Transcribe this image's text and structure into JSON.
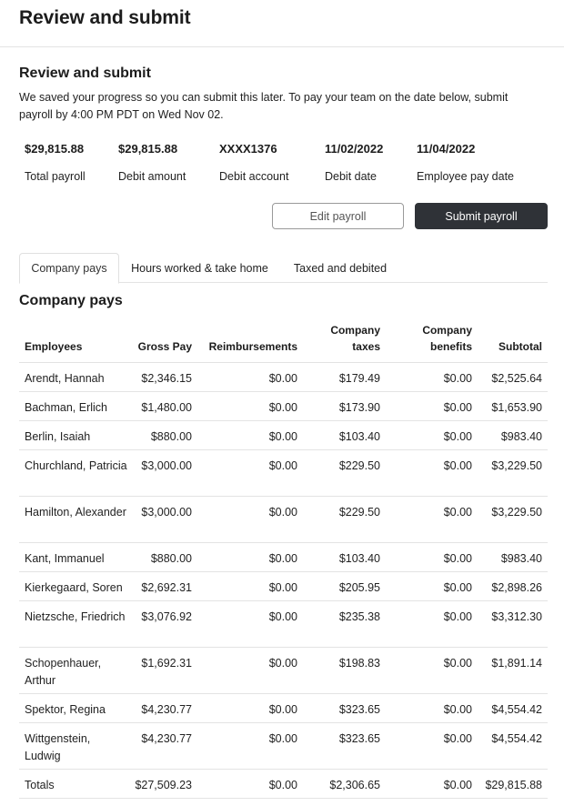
{
  "page": {
    "title": "Review and submit"
  },
  "review": {
    "heading": "Review and submit",
    "intro": "We saved your progress so you can submit this later. To pay your team on the date below, submit payroll by 4:00 PM PDT on Wed Nov 02."
  },
  "summary": [
    {
      "value": "$29,815.88",
      "label": "Total payroll"
    },
    {
      "value": "$29,815.88",
      "label": "Debit amount"
    },
    {
      "value": "XXXX1376",
      "label": "Debit account"
    },
    {
      "value": "11/02/2022",
      "label": "Debit date"
    },
    {
      "value": "11/04/2022",
      "label": "Employee pay date"
    }
  ],
  "actions": {
    "edit_label": "Edit payroll",
    "submit_label": "Submit payroll"
  },
  "tabs": [
    {
      "label": "Company pays",
      "active": true
    },
    {
      "label": "Hours worked & take home",
      "active": false
    },
    {
      "label": "Taxed and debited",
      "active": false
    }
  ],
  "table": {
    "title": "Company pays",
    "headers": {
      "employees": "Employees",
      "gross_pay": "Gross Pay",
      "reimbursements": "Reimbursements",
      "company_taxes": "Company taxes",
      "company_benefits": "Company benefits",
      "subtotal": "Subtotal"
    },
    "rows": [
      {
        "name": "Arendt, Hannah",
        "gross": "$2,346.15",
        "reimb": "$0.00",
        "taxes": "$179.49",
        "benefits": "$0.00",
        "subtotal": "$2,525.64"
      },
      {
        "name": "Bachman, Erlich",
        "gross": "$1,480.00",
        "reimb": "$0.00",
        "taxes": "$173.90",
        "benefits": "$0.00",
        "subtotal": "$1,653.90"
      },
      {
        "name": "Berlin, Isaiah",
        "gross": "$880.00",
        "reimb": "$0.00",
        "taxes": "$103.40",
        "benefits": "$0.00",
        "subtotal": "$983.40"
      },
      {
        "name": "Churchland, Patricia",
        "gross": "$3,000.00",
        "reimb": "$0.00",
        "taxes": "$229.50",
        "benefits": "$0.00",
        "subtotal": "$3,229.50"
      },
      {
        "name": "Hamilton, Alexander",
        "gross": "$3,000.00",
        "reimb": "$0.00",
        "taxes": "$229.50",
        "benefits": "$0.00",
        "subtotal": "$3,229.50"
      },
      {
        "name": "Kant, Immanuel",
        "gross": "$880.00",
        "reimb": "$0.00",
        "taxes": "$103.40",
        "benefits": "$0.00",
        "subtotal": "$983.40"
      },
      {
        "name": "Kierkegaard, Soren",
        "gross": "$2,692.31",
        "reimb": "$0.00",
        "taxes": "$205.95",
        "benefits": "$0.00",
        "subtotal": "$2,898.26"
      },
      {
        "name": "Nietzsche, Friedrich",
        "gross": "$3,076.92",
        "reimb": "$0.00",
        "taxes": "$235.38",
        "benefits": "$0.00",
        "subtotal": "$3,312.30"
      },
      {
        "name": "Schopenhauer, Arthur",
        "gross": "$1,692.31",
        "reimb": "$0.00",
        "taxes": "$198.83",
        "benefits": "$0.00",
        "subtotal": "$1,891.14"
      },
      {
        "name": "Spektor, Regina",
        "gross": "$4,230.77",
        "reimb": "$0.00",
        "taxes": "$323.65",
        "benefits": "$0.00",
        "subtotal": "$4,554.42"
      },
      {
        "name": "Wittgenstein, Ludwig",
        "gross": "$4,230.77",
        "reimb": "$0.00",
        "taxes": "$323.65",
        "benefits": "$0.00",
        "subtotal": "$4,554.42"
      }
    ],
    "totals": {
      "name": "Totals",
      "gross": "$27,509.23",
      "reimb": "$0.00",
      "taxes": "$2,306.65",
      "benefits": "$0.00",
      "subtotal": "$29,815.88"
    }
  }
}
